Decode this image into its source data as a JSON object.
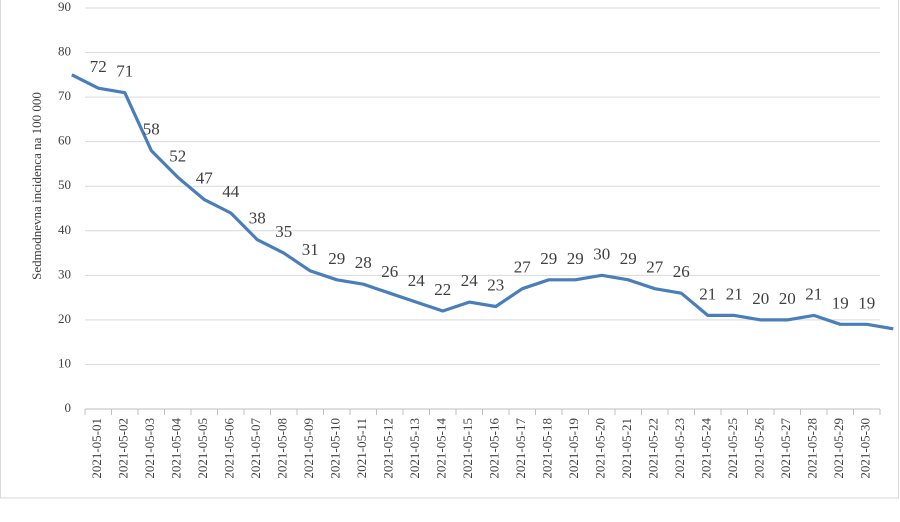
{
  "chart_data": {
    "type": "line",
    "y_label": "Sedmodnevna incidenca na 100 000",
    "categories": [
      null,
      "2021-05-01",
      "2021-05-02",
      "2021-05-03",
      "2021-05-04",
      "2021-05-05",
      "2021-05-06",
      "2021-05-07",
      "2021-05-08",
      "2021-05-09",
      "2021-05-10",
      "2021-05-11",
      "2021-05-12",
      "2021-05-13",
      "2021-05-14",
      "2021-05-15",
      "2021-05-16",
      "2021-05-17",
      "2021-05-18",
      "2021-05-19",
      "2021-05-20",
      "2021-05-21",
      "2021-05-22",
      "2021-05-23",
      "2021-05-24",
      "2021-05-25",
      "2021-05-26",
      "2021-05-27",
      "2021-05-28",
      "2021-05-29",
      "2021-05-30",
      null
    ],
    "values": [
      75,
      72,
      71,
      58,
      52,
      47,
      44,
      38,
      35,
      31,
      29,
      28,
      26,
      24,
      22,
      24,
      23,
      27,
      29,
      29,
      30,
      29,
      27,
      26,
      21,
      21,
      20,
      20,
      21,
      19,
      19,
      18
    ],
    "color": "#4a7ebb",
    "ylim": [
      0,
      90
    ],
    "yticks": [
      0,
      10,
      20,
      30,
      40,
      50,
      60,
      70,
      80,
      90
    ],
    "grid": true
  }
}
